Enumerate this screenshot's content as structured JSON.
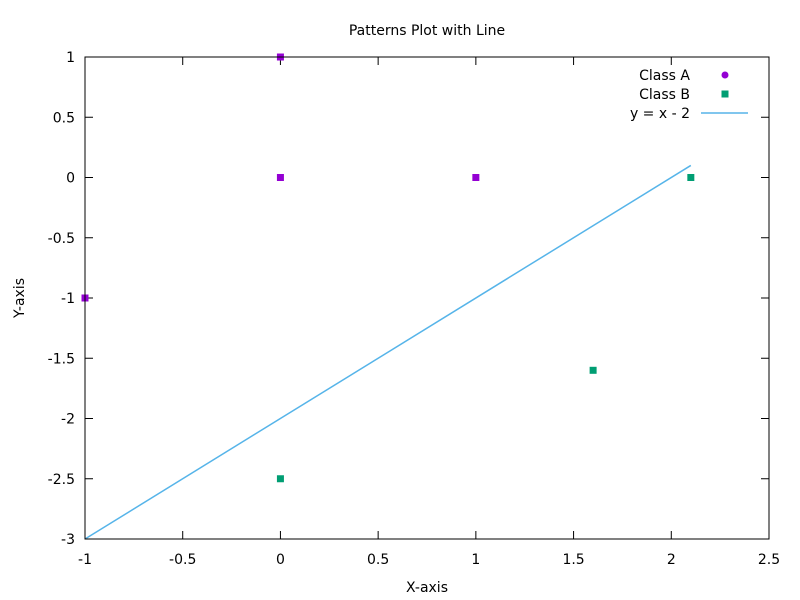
{
  "chart_data": {
    "type": "scatter",
    "title": "Patterns Plot with Line",
    "xlabel": "X-axis",
    "ylabel": "Y-axis",
    "xlim": [
      -1,
      2.5
    ],
    "ylim": [
      -3,
      1
    ],
    "xticks": [
      -1,
      -0.5,
      0,
      0.5,
      1,
      1.5,
      2,
      2.5
    ],
    "yticks": [
      -3,
      -2.5,
      -2,
      -1.5,
      -1,
      -0.5,
      0,
      0.5,
      1
    ],
    "grid": false,
    "legend_position": "top-right",
    "series": [
      {
        "name": "Class A",
        "type": "scatter",
        "color": "#9400d3",
        "x": [
          0,
          0,
          1,
          -1
        ],
        "y": [
          1,
          0,
          0,
          -1
        ]
      },
      {
        "name": "Class B",
        "type": "scatter",
        "color": "#009e73",
        "x": [
          2.1,
          1.6,
          0
        ],
        "y": [
          0,
          -1.6,
          -2.5
        ]
      },
      {
        "name": "y = x - 2",
        "type": "line",
        "color": "#56b4e9",
        "x": [
          -1,
          2.1
        ],
        "y": [
          -3,
          0.1
        ]
      }
    ]
  }
}
